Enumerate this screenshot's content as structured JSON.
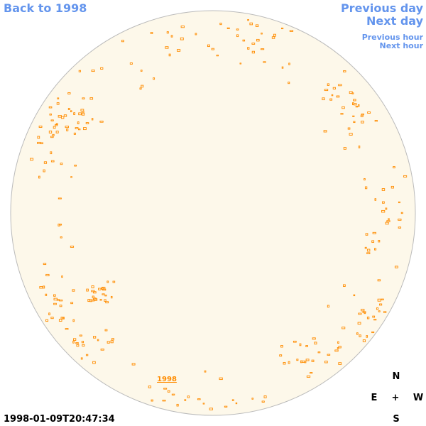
{
  "nav": {
    "back": "Back to 1998",
    "previous_day": "Previous day",
    "next_day": "Next day",
    "previous_hour": "Previous hour",
    "next_hour": "Next hour"
  },
  "disk_label": "1998",
  "timestamp": "1998-01-09T20:47:34",
  "compass": {
    "north": "N",
    "east": "E",
    "center": "+",
    "west": "W",
    "south": "S"
  }
}
